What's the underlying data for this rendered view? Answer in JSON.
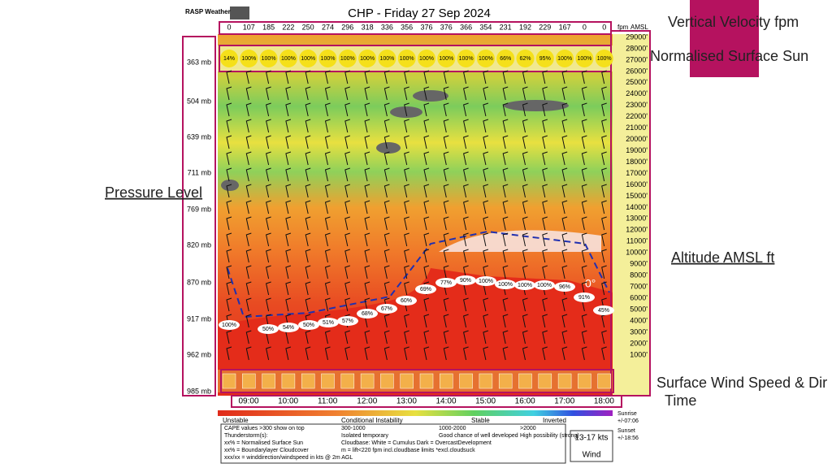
{
  "header": {
    "brand": "RASP Weather",
    "title": "CHP - Friday 27 Sep 2024"
  },
  "vertical_velocity": {
    "values": [
      0,
      107,
      185,
      222,
      250,
      274,
      296,
      318,
      336,
      356,
      376,
      376,
      366,
      354,
      231,
      192,
      229,
      167,
      0,
      0
    ],
    "unit": "fpm",
    "altitude_unit": "AMSL"
  },
  "surface_sun": [
    "14%",
    "100%",
    "100%",
    "100%",
    "100%",
    "100%",
    "100%",
    "100%",
    "100%",
    "100%",
    "100%",
    "100%",
    "100%",
    "100%",
    "66%",
    "62%",
    "95%",
    "100%",
    "100%",
    "100%"
  ],
  "pressure_levels": [
    "363 mb",
    "504 mb",
    "639 mb",
    "711 mb",
    "769 mb",
    "820 mb",
    "870 mb",
    "917 mb",
    "962 mb",
    "985 mb"
  ],
  "altitudes": [
    "29000'",
    "28000'",
    "27000'",
    "26000'",
    "25000'",
    "24000'",
    "23000'",
    "22000'",
    "21000'",
    "20000'",
    "19000'",
    "18000'",
    "17000'",
    "16000'",
    "15000'",
    "14000'",
    "13000'",
    "12000'",
    "11000'",
    "10000'",
    "9000'",
    "8000'",
    "7000'",
    "6000'",
    "5000'",
    "4000'",
    "3000'",
    "2000'",
    "1000'"
  ],
  "times": [
    "09:00",
    "10:00",
    "11:00",
    "12:00",
    "13:00",
    "14:00",
    "15:00",
    "16:00",
    "17:00",
    "18:00"
  ],
  "cloud_cover": [
    "100%",
    "50%",
    "54%",
    "50%",
    "51%",
    "57%",
    "68%",
    "67%",
    "60%",
    "69%",
    "77%",
    "90%",
    "100%",
    "100%",
    "100%",
    "100%",
    "96%",
    "91%",
    "45%"
  ],
  "freezing_label": "0°",
  "legend": {
    "scale": [
      "Unstable",
      "Conditional Instability",
      "Stable",
      "Inverted"
    ],
    "sunrise": "Sunrise",
    "sunrise_time": "+/-07:06",
    "sunset": "Sunset",
    "sunset_time": "+/-18:56",
    "lines": [
      [
        "CAPE values >300 show on top",
        "300-1000",
        "1000-2000",
        ">2000"
      ],
      [
        "Thunderstorm(s):",
        "Isolated temporary",
        "Good chance of well developed",
        "High possibility (strong)"
      ],
      [
        "xx% = Normalised Surface Sun",
        "Cloudbase: White = Cumulus   Dark = OvercastDevelopment"
      ],
      [
        "xx% = Boundarylayer Cloudcover",
        "m = lift<220 fpm incl.cloudbase limits *excl.cloudsuck"
      ],
      [
        "xxx/xx = winddirection/windspeed in kts @ 2m AGL"
      ]
    ],
    "wind_range": "13-17 kts",
    "wind": "Wind"
  },
  "annotations": {
    "vertical_velocity": "Vertical Velocity fpm",
    "surface_sun": "Normalised Surface Sun",
    "pressure": "Pressure Level",
    "altitude": "Altitude AMSL ft",
    "surface_wind": "Surface Wind Speed & Dir",
    "time": "Time"
  }
}
